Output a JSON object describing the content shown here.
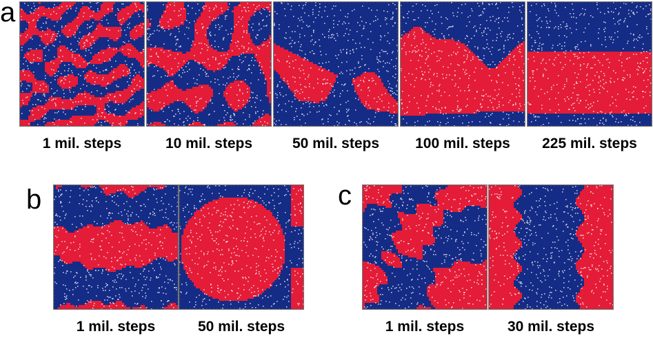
{
  "figure": {
    "colors": {
      "red": "#e41c38",
      "blue": "#152c86",
      "speck": "#ffffff"
    },
    "groups": [
      {
        "label": "a",
        "snapshots": [
          {
            "caption": "1 mil. steps",
            "pattern": "labyrinth"
          },
          {
            "caption": "10 mil. steps",
            "pattern": "coarse-labyrinth"
          },
          {
            "caption": "50 mil. steps",
            "pattern": "diagonal-red-band"
          },
          {
            "caption": "100 mil. steps",
            "pattern": "red-bottom-with-notch"
          },
          {
            "caption": "225 mil. steps",
            "pattern": "horizontal-red-stripe"
          }
        ]
      },
      {
        "label": "b",
        "snapshots": [
          {
            "caption": "1 mil. steps",
            "pattern": "mixed-blobs"
          },
          {
            "caption": "50 mil. steps",
            "pattern": "red-circle"
          }
        ]
      },
      {
        "label": "c",
        "snapshots": [
          {
            "caption": "1 mil. steps",
            "pattern": "mixed-blobs-2"
          },
          {
            "caption": "30 mil. steps",
            "pattern": "vertical-stripes"
          }
        ]
      }
    ]
  }
}
